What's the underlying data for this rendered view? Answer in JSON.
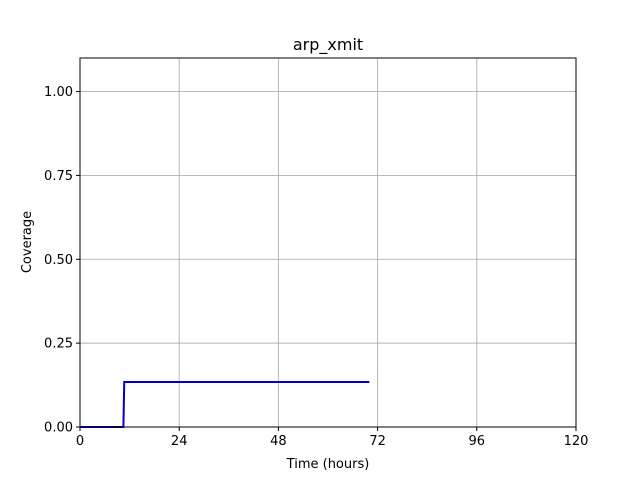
{
  "chart_data": {
    "type": "line",
    "title": "arp_xmit",
    "xlabel": "Time (hours)",
    "ylabel": "Coverage",
    "xlim": [
      0,
      120
    ],
    "ylim": [
      0,
      1.1
    ],
    "xticks": [
      0,
      24,
      48,
      72,
      96,
      120
    ],
    "xtick_labels": [
      "0",
      "24",
      "48",
      "72",
      "96",
      "120"
    ],
    "yticks": [
      0.0,
      0.25,
      0.5,
      0.75,
      1.0
    ],
    "ytick_labels": [
      "0.00",
      "0.25",
      "0.50",
      "0.75",
      "1.00"
    ],
    "grid": true,
    "series": [
      {
        "color": "#0000cc",
        "x": [
          0,
          10.5,
          10.7,
          70
        ],
        "y": [
          0,
          0,
          0.134,
          0.134
        ]
      }
    ]
  }
}
